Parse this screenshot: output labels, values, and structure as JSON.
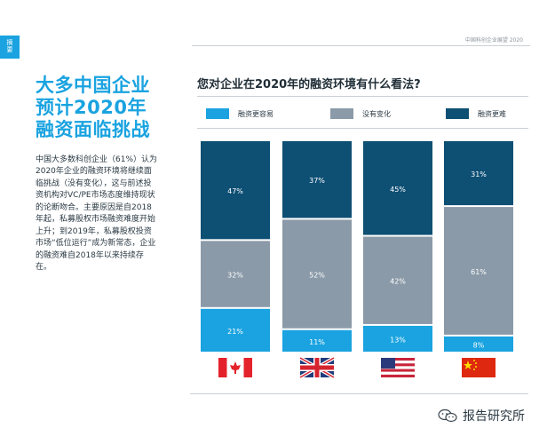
{
  "side_tab": {
    "label_line1": "摘",
    "label_line2": "要"
  },
  "header": {
    "label": "中国科创企业展望 2020"
  },
  "left": {
    "headline": "大多中国企业预计2020年融资面临挑战",
    "body": "中国大多数科创企业（61%）认为2020年企业的融资环境将继续面临挑战（没有变化），这与前述投资机构对VC/PE市场态度维持现状的论断吻合。主要原因是自2018年起，私募股权市场融资难度开始上升；到2019年，私募股权投资市场“低位运行”成为新常态，企业的融资难自2018年以来持续存在。"
  },
  "watermark": {
    "text": "报告研究所",
    "icon": "wechat-icon"
  },
  "chart_data": {
    "type": "bar",
    "stacked": true,
    "title": "您对企业在2020年的融资环境有什么看法?",
    "categories": [
      "canada-flag",
      "uk-flag",
      "us-flag",
      "china-flag"
    ],
    "category_icons": [
      "canada-flag-icon",
      "uk-flag-icon",
      "us-flag-icon",
      "china-flag-icon"
    ],
    "series": [
      {
        "name": "融资更容易",
        "color": "#1aa3e0",
        "values": [
          21,
          11,
          13,
          8
        ],
        "labels": [
          "21%",
          "11%",
          "13%",
          "8%"
        ]
      },
      {
        "name": "没有变化",
        "color": "#8b9aa8",
        "values": [
          32,
          52,
          42,
          61
        ],
        "labels": [
          "32%",
          "52%",
          "42%",
          "61%"
        ]
      },
      {
        "name": "融资更难",
        "color": "#0e4f74",
        "values": [
          47,
          37,
          45,
          31
        ],
        "labels": [
          "47%",
          "37%",
          "45%",
          "31%"
        ]
      }
    ],
    "ylim": [
      0,
      100
    ],
    "legend_position": "top",
    "grid": false
  }
}
